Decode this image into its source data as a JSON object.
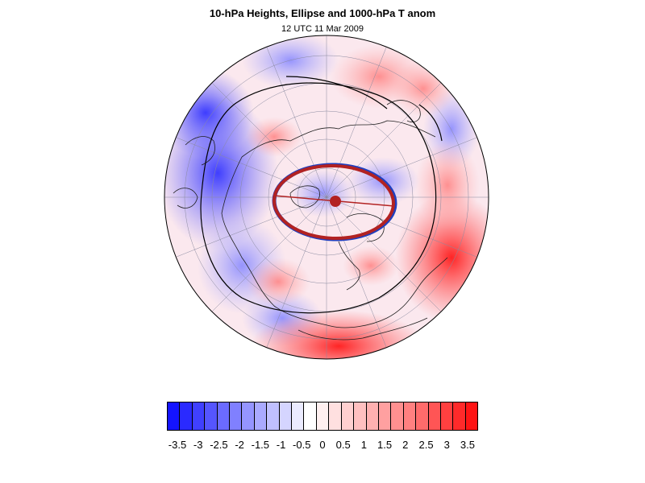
{
  "title": "10-hPa Heights, Ellipse and 1000-hPa T anom",
  "subtitle": "12 UTC 11 Mar 2009",
  "colorbar": {
    "labels": [
      "-3.5",
      "-3",
      "-2.5",
      "-2",
      "-1.5",
      "-1",
      "-0.5",
      "0",
      "0.5",
      "1",
      "1.5",
      "2",
      "2.5",
      "3",
      "3.5"
    ],
    "colors": [
      "#1414ff",
      "#2a2aff",
      "#4040ff",
      "#5555ff",
      "#6b6bff",
      "#8080ff",
      "#9595ff",
      "#aaaaff",
      "#c0c0ff",
      "#d5d5ff",
      "#ebebff",
      "#ffffff",
      "#fff0f0",
      "#ffe0e0",
      "#ffd0d0",
      "#ffc0c0",
      "#ffb0b0",
      "#ffa0a0",
      "#ff9090",
      "#ff8080",
      "#ff6b6b",
      "#ff5555",
      "#ff4040",
      "#ff2a2a",
      "#ff1414"
    ]
  },
  "map": {
    "projection": "orthographic-north-polar",
    "ellipse_color": "#b22222",
    "ellipse_edge_color": "#1f3fbf",
    "contour_color": "#000000"
  }
}
